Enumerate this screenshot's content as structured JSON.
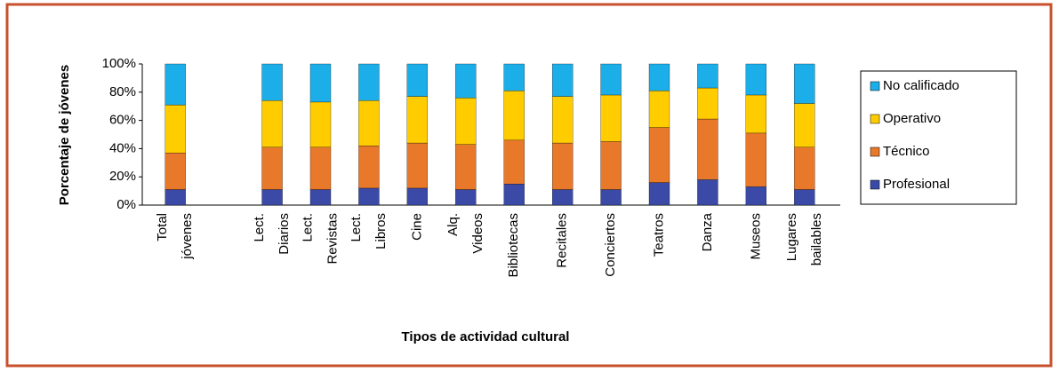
{
  "chart_data": {
    "type": "stacked_bar",
    "y_axis_label": "Porcentaje de jóvenes",
    "x_axis_label": "Tipos de actividad cultural",
    "categories": [
      [
        "Total",
        "jóvenes"
      ],
      null,
      [
        "Lect.",
        "Diarios"
      ],
      [
        "Lect.",
        "Revistas"
      ],
      [
        "Lect.",
        "Libros"
      ],
      [
        "Cine"
      ],
      [
        "Alq.",
        "Videos"
      ],
      [
        "Bibliotecas"
      ],
      [
        "Recitales"
      ],
      [
        "Conciertos"
      ],
      [
        "Teatros"
      ],
      [
        "Danza"
      ],
      [
        "Museos"
      ],
      [
        "Lugares",
        "bailables"
      ]
    ],
    "series": [
      {
        "name": "Profesional",
        "color": "#3a4aa6",
        "values": [
          11,
          null,
          11,
          11,
          12,
          12,
          11,
          15,
          11,
          11,
          16,
          18,
          13,
          11
        ]
      },
      {
        "name": "Técnico",
        "color": "#e8782a",
        "values": [
          26,
          null,
          30,
          30,
          30,
          32,
          32,
          31,
          33,
          34,
          39,
          43,
          38,
          30
        ]
      },
      {
        "name": "Operativo",
        "color": "#ffcc00",
        "values": [
          34,
          null,
          33,
          32,
          32,
          33,
          33,
          35,
          33,
          33,
          26,
          22,
          27,
          31
        ]
      },
      {
        "name": "No calificado",
        "color": "#1caee8",
        "values": [
          29,
          null,
          26,
          27,
          26,
          23,
          24,
          19,
          23,
          22,
          19,
          17,
          22,
          28
        ]
      }
    ],
    "ylim": [
      0,
      100
    ],
    "yticks": [
      {
        "value": 0,
        "label": "0%"
      },
      {
        "value": 20,
        "label": "20%"
      },
      {
        "value": 40,
        "label": "40%"
      },
      {
        "value": 60,
        "label": "60%"
      },
      {
        "value": 80,
        "label": "80%"
      },
      {
        "value": 100,
        "label": "100%"
      }
    ],
    "legend": "right"
  }
}
